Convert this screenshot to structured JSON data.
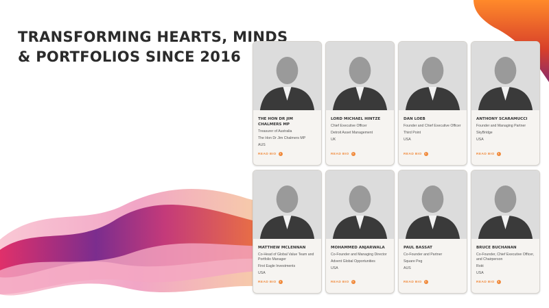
{
  "headline": [
    "TRANSFORMING HEARTS, MINDS",
    "& PORTFOLIOS SINCE 2016"
  ],
  "accent_color": "#f08a3c",
  "read_bio_label": "READ BIO",
  "speakers": [
    {
      "name": "The Hon Dr Jim Chalmers MP",
      "lines": [
        "Treasurer of Australia",
        "The Hon Dr Jim Chalmers MP",
        "AUS"
      ]
    },
    {
      "name": "Lord Michael Hintze",
      "lines": [
        "Chief Executive Officer",
        "Detroit Asset Management",
        "UK"
      ]
    },
    {
      "name": "Dan Loeb",
      "lines": [
        "Founder and Chief Executive Officer",
        "Third Point",
        "USA"
      ]
    },
    {
      "name": "Anthony Scaramucci",
      "lines": [
        "Founder and Managing Partner",
        "SkyBridge",
        "USA"
      ]
    },
    {
      "name": "Matthew McLennan",
      "lines": [
        "Co-Head of Global Value Team and Portfolio Manager",
        "First Eagle Investments",
        "USA"
      ]
    },
    {
      "name": "Mohammed Anjarwala",
      "lines": [
        "Co-Founder and Managing Director",
        "Advent Global Opportunities",
        "USA"
      ]
    },
    {
      "name": "Paul Bassat",
      "lines": [
        "Co-Founder and Partner",
        "Square Peg",
        "AUS"
      ]
    },
    {
      "name": "Bruce Buchanan",
      "lines": [
        "Co-Founder, Chief Executive Officer, and Chairperson",
        "Rokt",
        "USA"
      ]
    }
  ]
}
